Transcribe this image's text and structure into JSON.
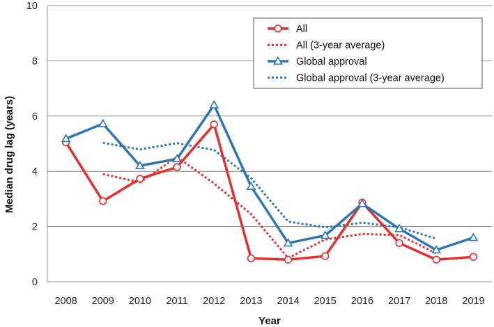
{
  "chart_data": {
    "type": "line",
    "title": "",
    "xlabel": "Year",
    "ylabel": "Median drug lag (years)",
    "ylim": [
      0,
      10
    ],
    "yticks": [
      0,
      2,
      4,
      6,
      8,
      10
    ],
    "grid": "horizontal",
    "legend_position": "top-right",
    "categories": [
      "2008",
      "2009",
      "2010",
      "2011",
      "2012",
      "2013",
      "2014",
      "2015",
      "2016",
      "2017",
      "2018",
      "2019"
    ],
    "series": [
      {
        "name": "All",
        "color": "#e03030",
        "style": "solid",
        "marker": "circle",
        "values": [
          5.05,
          2.92,
          3.73,
          4.15,
          5.7,
          0.85,
          0.8,
          0.93,
          2.87,
          1.4,
          0.8,
          0.9
        ]
      },
      {
        "name": "All (3-year average)",
        "color": "#e03030",
        "style": "dotted",
        "marker": "none",
        "values": [
          null,
          3.9,
          3.6,
          4.52,
          3.56,
          2.45,
          0.86,
          1.53,
          1.73,
          1.69,
          1.03,
          null
        ]
      },
      {
        "name": "Global approval",
        "color": "#2e75b6",
        "style": "solid",
        "marker": "triangle",
        "values": [
          5.18,
          5.72,
          4.2,
          4.45,
          6.4,
          3.45,
          1.4,
          1.68,
          2.83,
          1.92,
          1.15,
          1.6
        ]
      },
      {
        "name": "Global approval (3-year average)",
        "color": "#2e75b6",
        "style": "dotted",
        "marker": "none",
        "values": [
          null,
          5.03,
          4.79,
          5.02,
          4.77,
          3.75,
          2.18,
          1.97,
          2.14,
          1.97,
          1.56,
          null
        ]
      }
    ]
  }
}
